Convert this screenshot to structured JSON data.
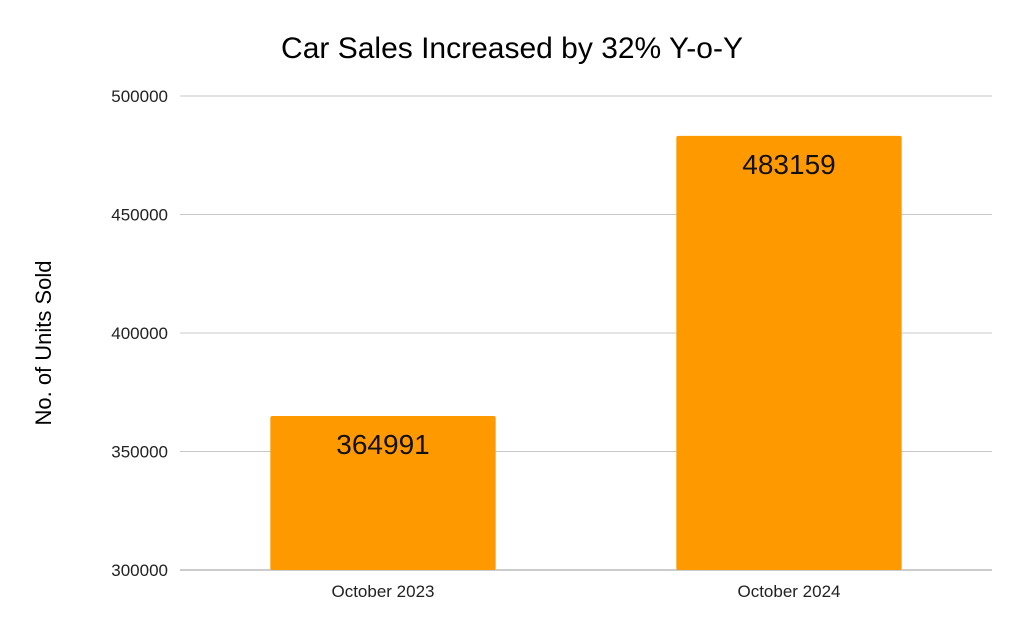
{
  "chart_data": {
    "type": "bar",
    "title": "Car Sales Increased by 32% Y-o-Y",
    "xlabel": "",
    "ylabel": "No. of Units Sold",
    "categories": [
      "October 2023",
      "October 2024"
    ],
    "values": [
      364991,
      483159
    ],
    "data_labels": [
      "364991",
      "483159"
    ],
    "ylim": [
      300000,
      500000
    ],
    "yticks": [
      300000,
      350000,
      400000,
      450000,
      500000
    ],
    "ytick_labels": [
      "300000",
      "350000",
      "400000",
      "450000",
      "500000"
    ],
    "grid": true,
    "legend": "none",
    "bar_color": "#ff9900",
    "grid_color": "#c8c8c8"
  }
}
